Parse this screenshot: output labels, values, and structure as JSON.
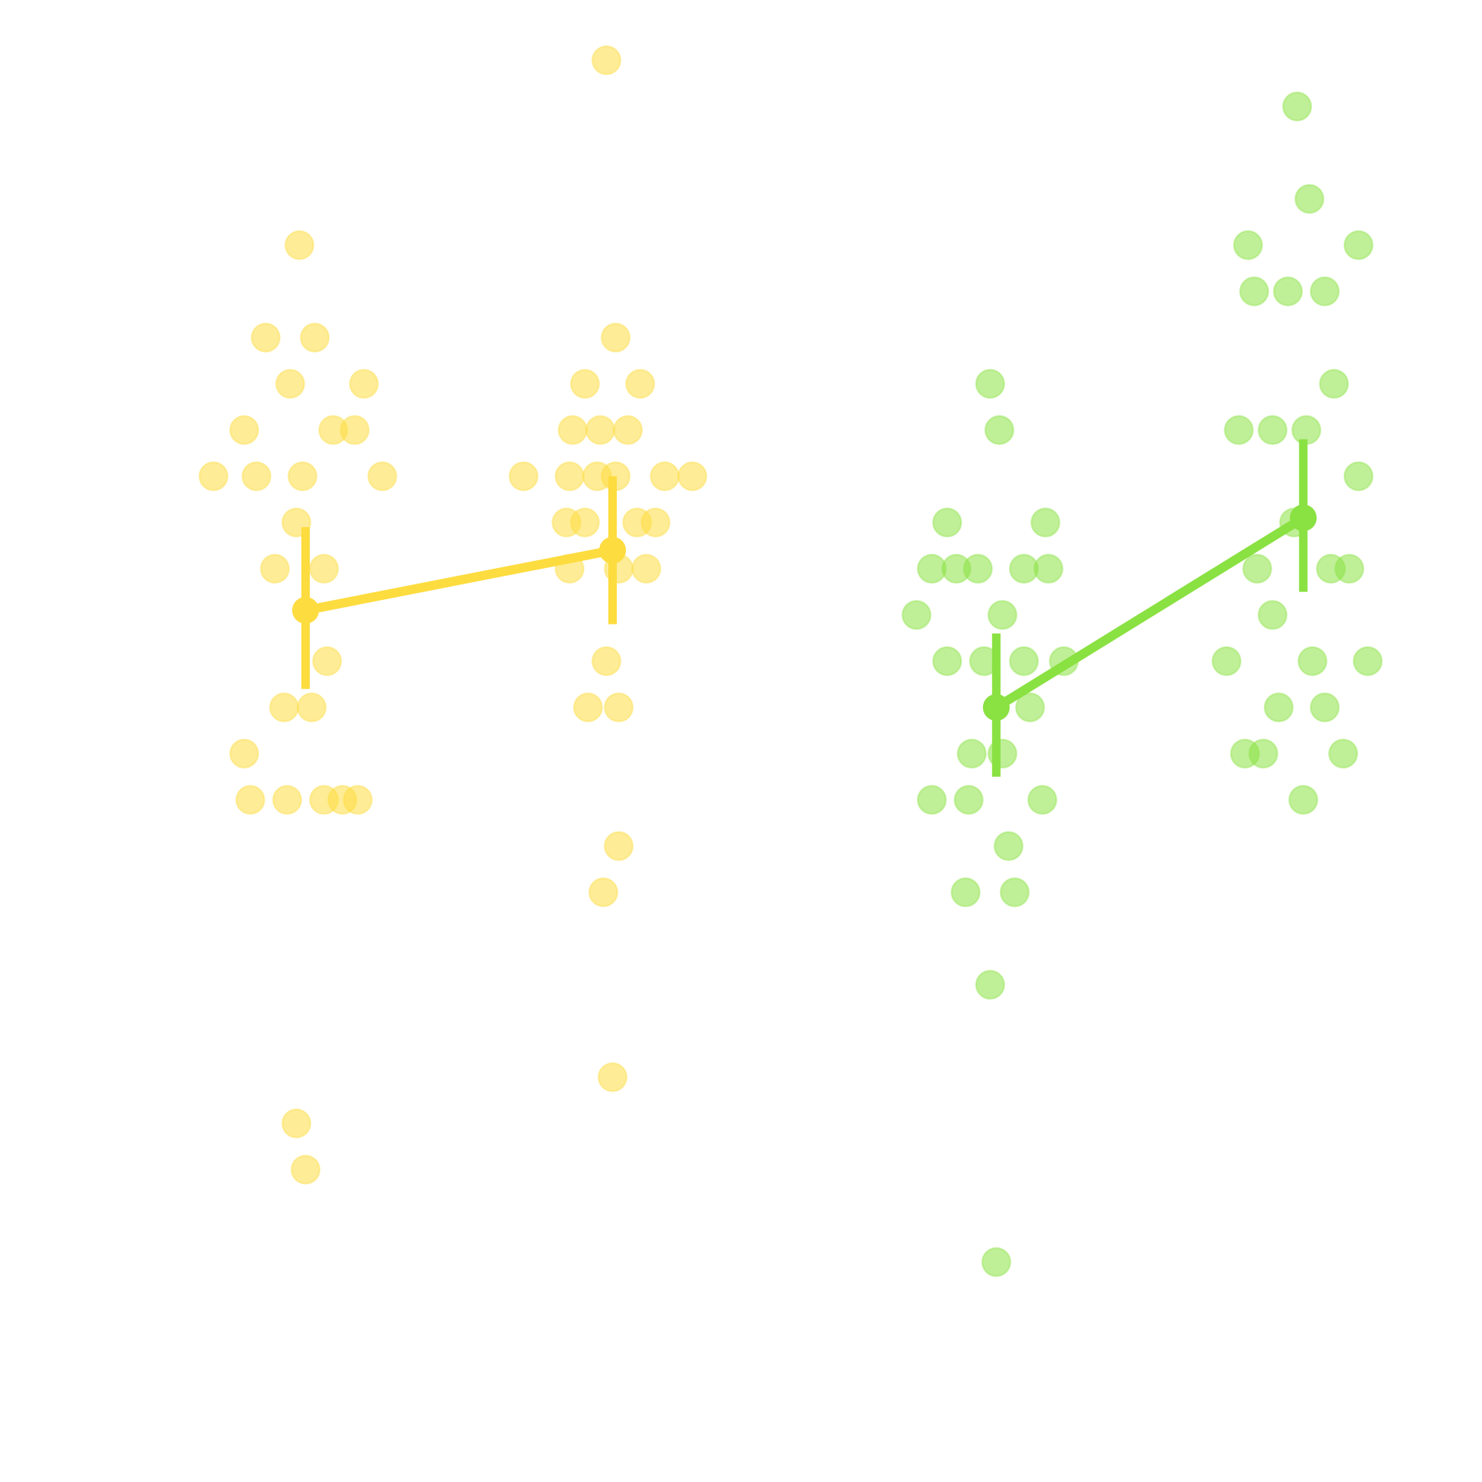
{
  "chart_data": {
    "type": "scatter",
    "title": "",
    "xlabel": "",
    "ylabel": "",
    "ylim": [
      0,
      30
    ],
    "grid": false,
    "legend": "none",
    "groups": [
      {
        "color": "#fddc3f",
        "fill_alpha": 0.55,
        "conditions": [
          {
            "center_x": 1,
            "mean": 17.3,
            "error_low": 15.6,
            "error_high": 19.1,
            "points": [
              {
                "x": 0.98,
                "y": 25.2
              },
              {
                "x": 0.87,
                "y": 23.2
              },
              {
                "x": 1.03,
                "y": 23.2
              },
              {
                "x": 0.95,
                "y": 22.2
              },
              {
                "x": 1.19,
                "y": 22.2
              },
              {
                "x": 0.8,
                "y": 21.2
              },
              {
                "x": 1.09,
                "y": 21.2
              },
              {
                "x": 1.16,
                "y": 21.2
              },
              {
                "x": 0.7,
                "y": 20.2
              },
              {
                "x": 0.84,
                "y": 20.2
              },
              {
                "x": 0.99,
                "y": 20.2
              },
              {
                "x": 1.25,
                "y": 20.2
              },
              {
                "x": 0.97,
                "y": 19.2
              },
              {
                "x": 0.9,
                "y": 18.2
              },
              {
                "x": 1.06,
                "y": 18.2
              },
              {
                "x": 1.07,
                "y": 16.2
              },
              {
                "x": 0.93,
                "y": 15.2
              },
              {
                "x": 1.02,
                "y": 15.2
              },
              {
                "x": 0.8,
                "y": 14.2
              },
              {
                "x": 0.82,
                "y": 13.2
              },
              {
                "x": 0.94,
                "y": 13.2
              },
              {
                "x": 1.06,
                "y": 13.2
              },
              {
                "x": 1.12,
                "y": 13.2
              },
              {
                "x": 1.17,
                "y": 13.2
              },
              {
                "x": 0.97,
                "y": 6.2
              },
              {
                "x": 1.0,
                "y": 5.2
              }
            ]
          },
          {
            "center_x": 2,
            "mean": 18.6,
            "error_low": 17.0,
            "error_high": 20.2,
            "points": [
              {
                "x": 1.98,
                "y": 29.2
              },
              {
                "x": 2.01,
                "y": 23.2
              },
              {
                "x": 1.91,
                "y": 22.2
              },
              {
                "x": 2.09,
                "y": 22.2
              },
              {
                "x": 1.87,
                "y": 21.2
              },
              {
                "x": 1.96,
                "y": 21.2
              },
              {
                "x": 2.05,
                "y": 21.2
              },
              {
                "x": 1.71,
                "y": 20.2
              },
              {
                "x": 1.86,
                "y": 20.2
              },
              {
                "x": 1.95,
                "y": 20.2
              },
              {
                "x": 2.01,
                "y": 20.2
              },
              {
                "x": 2.17,
                "y": 20.2
              },
              {
                "x": 2.26,
                "y": 20.2
              },
              {
                "x": 1.85,
                "y": 19.2
              },
              {
                "x": 1.91,
                "y": 19.2
              },
              {
                "x": 2.08,
                "y": 19.2
              },
              {
                "x": 2.14,
                "y": 19.2
              },
              {
                "x": 1.86,
                "y": 18.2
              },
              {
                "x": 2.02,
                "y": 18.2
              },
              {
                "x": 2.11,
                "y": 18.2
              },
              {
                "x": 1.98,
                "y": 16.2
              },
              {
                "x": 1.92,
                "y": 15.2
              },
              {
                "x": 2.02,
                "y": 15.2
              },
              {
                "x": 2.02,
                "y": 12.2
              },
              {
                "x": 1.97,
                "y": 11.2
              },
              {
                "x": 2.0,
                "y": 7.2
              }
            ]
          }
        ]
      },
      {
        "color": "#8ae142",
        "fill_alpha": 0.55,
        "conditions": [
          {
            "center_x": 3.25,
            "mean": 15.2,
            "error_low": 13.7,
            "error_high": 16.8,
            "points": [
              {
                "x": 3.23,
                "y": 22.2
              },
              {
                "x": 3.26,
                "y": 21.2
              },
              {
                "x": 3.09,
                "y": 19.2
              },
              {
                "x": 3.41,
                "y": 19.2
              },
              {
                "x": 3.04,
                "y": 18.2
              },
              {
                "x": 3.12,
                "y": 18.2
              },
              {
                "x": 3.19,
                "y": 18.2
              },
              {
                "x": 3.34,
                "y": 18.2
              },
              {
                "x": 3.42,
                "y": 18.2
              },
              {
                "x": 2.99,
                "y": 17.2
              },
              {
                "x": 3.27,
                "y": 17.2
              },
              {
                "x": 3.09,
                "y": 16.2
              },
              {
                "x": 3.21,
                "y": 16.2
              },
              {
                "x": 3.34,
                "y": 16.2
              },
              {
                "x": 3.47,
                "y": 16.2
              },
              {
                "x": 3.36,
                "y": 15.2
              },
              {
                "x": 3.17,
                "y": 14.2
              },
              {
                "x": 3.27,
                "y": 14.2
              },
              {
                "x": 3.04,
                "y": 13.2
              },
              {
                "x": 3.16,
                "y": 13.2
              },
              {
                "x": 3.4,
                "y": 13.2
              },
              {
                "x": 3.29,
                "y": 12.2
              },
              {
                "x": 3.15,
                "y": 11.2
              },
              {
                "x": 3.31,
                "y": 11.2
              },
              {
                "x": 3.23,
                "y": 9.2
              },
              {
                "x": 3.25,
                "y": 3.2
              }
            ]
          },
          {
            "center_x": 4.25,
            "mean": 19.3,
            "error_low": 17.7,
            "error_high": 21.0,
            "points": [
              {
                "x": 4.23,
                "y": 28.2
              },
              {
                "x": 4.27,
                "y": 26.2
              },
              {
                "x": 4.07,
                "y": 25.2
              },
              {
                "x": 4.43,
                "y": 25.2
              },
              {
                "x": 4.09,
                "y": 24.2
              },
              {
                "x": 4.2,
                "y": 24.2
              },
              {
                "x": 4.32,
                "y": 24.2
              },
              {
                "x": 4.35,
                "y": 22.2
              },
              {
                "x": 4.04,
                "y": 21.2
              },
              {
                "x": 4.15,
                "y": 21.2
              },
              {
                "x": 4.26,
                "y": 21.2
              },
              {
                "x": 4.43,
                "y": 20.2
              },
              {
                "x": 4.22,
                "y": 19.2
              },
              {
                "x": 4.1,
                "y": 18.2
              },
              {
                "x": 4.34,
                "y": 18.2
              },
              {
                "x": 4.4,
                "y": 18.2
              },
              {
                "x": 4.15,
                "y": 17.2
              },
              {
                "x": 4.0,
                "y": 16.2
              },
              {
                "x": 4.28,
                "y": 16.2
              },
              {
                "x": 4.46,
                "y": 16.2
              },
              {
                "x": 4.17,
                "y": 15.2
              },
              {
                "x": 4.32,
                "y": 15.2
              },
              {
                "x": 4.06,
                "y": 14.2
              },
              {
                "x": 4.12,
                "y": 14.2
              },
              {
                "x": 4.38,
                "y": 14.2
              },
              {
                "x": 4.25,
                "y": 13.2
              }
            ]
          }
        ]
      }
    ]
  }
}
